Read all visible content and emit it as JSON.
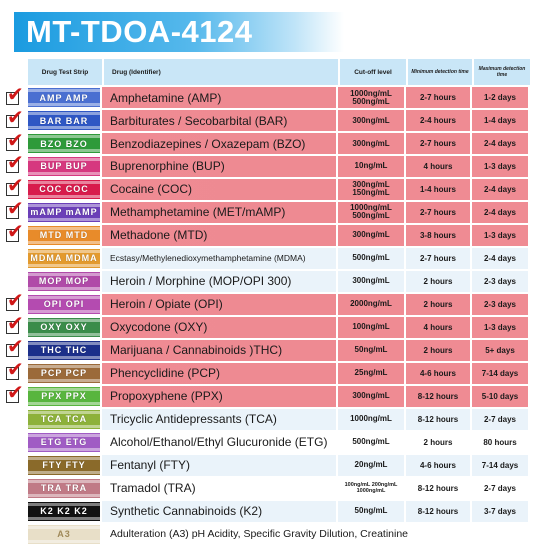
{
  "title": "MT-TDOA-4124",
  "headers": {
    "strip": "Drug Test Strip",
    "drug": "Drug (Identifier)",
    "cutoff": "Cut-off level",
    "min": "Minimum detection time",
    "max": "Maximum detection time"
  },
  "rows": [
    {
      "code": "AMP AMP",
      "color": "#4a6fd1",
      "drug": "Amphetamine (AMP)",
      "cutoff": "1000ng/mL 500ng/mL",
      "min": "2-7 hours",
      "max": "1-2 days",
      "checked": true,
      "style": "pink"
    },
    {
      "code": "BAR BAR",
      "color": "#2f57c4",
      "drug": "Barbiturates / Secobarbital (BAR)",
      "cutoff": "300ng/mL",
      "min": "2-4 hours",
      "max": "1-4 days",
      "checked": true,
      "style": "pink"
    },
    {
      "code": "BZO BZO",
      "color": "#2e9a3a",
      "drug": "Benzodiazepines / Oxazepam (BZO)",
      "cutoff": "300ng/mL",
      "min": "2-7 hours",
      "max": "2-4 days",
      "checked": true,
      "style": "pink"
    },
    {
      "code": "BUP BUP",
      "color": "#d6387f",
      "drug": "Buprenorphine (BUP)",
      "cutoff": "10ng/mL",
      "min": "4 hours",
      "max": "1-3 days",
      "checked": true,
      "style": "pink"
    },
    {
      "code": "COC COC",
      "color": "#d81c4c",
      "drug": "Cocaine (COC)",
      "cutoff": "300ng/mL 150ng/mL",
      "min": "1-4 hours",
      "max": "2-4 days",
      "checked": true,
      "style": "pink"
    },
    {
      "code": "mAMP mAMP",
      "color": "#6b3fb8",
      "drug": "Methamphetamine (MET/mAMP)",
      "cutoff": "1000ng/mL 500ng/mL",
      "min": "2-7 hours",
      "max": "2-4 days",
      "checked": true,
      "style": "pink"
    },
    {
      "code": "MTD MTD",
      "color": "#e88b2a",
      "drug": "Methadone (MTD)",
      "cutoff": "300ng/mL",
      "min": "3-8 hours",
      "max": "1-3 days",
      "checked": true,
      "style": "pink"
    },
    {
      "code": "MDMA MDMA",
      "color": "#e39a2e",
      "drug": "Ecstasy/Methylenedioxymethamphetamine (MDMA)",
      "cutoff": "500ng/mL",
      "min": "2-7 hours",
      "max": "2-4 days",
      "checked": false,
      "style": "plain",
      "small": true
    },
    {
      "code": "MOP MOP",
      "color": "#b04aa8",
      "drug": "Heroin / Morphine (MOP/OPI 300)",
      "cutoff": "300ng/mL",
      "min": "2 hours",
      "max": "2-3 days",
      "checked": false,
      "style": "plain"
    },
    {
      "code": "OPI OPI",
      "color": "#b44bb0",
      "drug": "Heroin / Opiate (OPI)",
      "cutoff": "2000ng/mL",
      "min": "2 hours",
      "max": "2-3 days",
      "checked": true,
      "style": "pink"
    },
    {
      "code": "OXY OXY",
      "color": "#3a8c4a",
      "drug": "Oxycodone (OXY)",
      "cutoff": "100ng/mL",
      "min": "4 hours",
      "max": "1-3 days",
      "checked": true,
      "style": "pink"
    },
    {
      "code": "THC THC",
      "color": "#1c2f8a",
      "drug": "Marijuana / Cannabinoids )THC)",
      "cutoff": "50ng/mL",
      "min": "2 hours",
      "max": "5+ days",
      "checked": true,
      "style": "pink"
    },
    {
      "code": "PCP PCP",
      "color": "#9b6a3a",
      "drug": "Phencyclidine (PCP)",
      "cutoff": "25ng/mL",
      "min": "4-6 hours",
      "max": "7-14 days",
      "checked": true,
      "style": "pink"
    },
    {
      "code": "PPX PPX",
      "color": "#58b53e",
      "drug": "Propoxyphene (PPX)",
      "cutoff": "300ng/mL",
      "min": "8-12 hours",
      "max": "5-10 days",
      "checked": true,
      "style": "pink"
    },
    {
      "code": "TCA TCA",
      "color": "#8db13a",
      "drug": "Tricyclic Antidepressants (TCA)",
      "cutoff": "1000ng/mL",
      "min": "8-12 hours",
      "max": "2-7 days",
      "checked": false,
      "style": "plain"
    },
    {
      "code": "ETG ETG",
      "color": "#a05bc4",
      "drug": "Alcohol/Ethanol/Ethyl Glucuronide (ETG)",
      "cutoff": "500ng/mL",
      "min": "2 hours",
      "max": "80 hours",
      "checked": false,
      "style": "plain alt"
    },
    {
      "code": "FTY FTY",
      "color": "#8a6a2a",
      "drug": "Fentanyl (FTY)",
      "cutoff": "20ng/mL",
      "min": "4-6 hours",
      "max": "7-14 days",
      "checked": false,
      "style": "plain"
    },
    {
      "code": "TRA TRA",
      "color": "#c07a86",
      "drug": "Tramadol (TRA)",
      "cutoff": "100ng/mL 200ng/mL 1000ng/mL",
      "min": "8-12 hours",
      "max": "2-7 days",
      "checked": false,
      "style": "plain alt",
      "tinyCut": true
    },
    {
      "code": "K2 K2 K2",
      "color": "#111111",
      "drug": "Synthetic Cannabinoids (K2)",
      "cutoff": "50ng/mL",
      "min": "8-12 hours",
      "max": "3-7 days",
      "checked": false,
      "style": "plain"
    },
    {
      "code": "A3",
      "color": "#e8dfc8",
      "drug": "Adulteration (A3) pH Acidity, Specific Gravity Dilution, Creatinine",
      "cutoff": "",
      "min": "",
      "max": "",
      "checked": false,
      "style": "adult-row",
      "adult": true
    }
  ]
}
